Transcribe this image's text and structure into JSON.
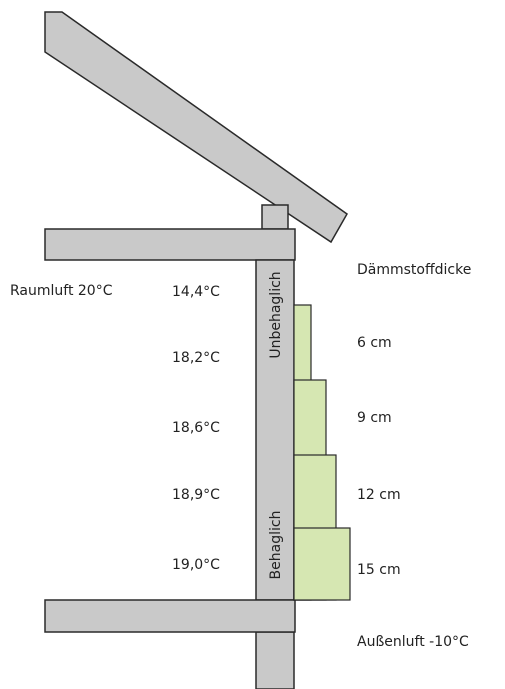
{
  "room_air": "Raumluft 20°C",
  "temperatures": [
    "14,4°C",
    "18,2°C",
    "18,6°C",
    "18,9°C",
    "19,0°C"
  ],
  "zones": {
    "uncomfortable": "Unbehaglich",
    "comfortable": "Behaglich"
  },
  "insulation_heading": "Dämmstoffdicke",
  "thicknesses": [
    "6 cm",
    "9 cm",
    "12 cm",
    "15 cm"
  ],
  "outside_air": "Außenluft -10°C"
}
